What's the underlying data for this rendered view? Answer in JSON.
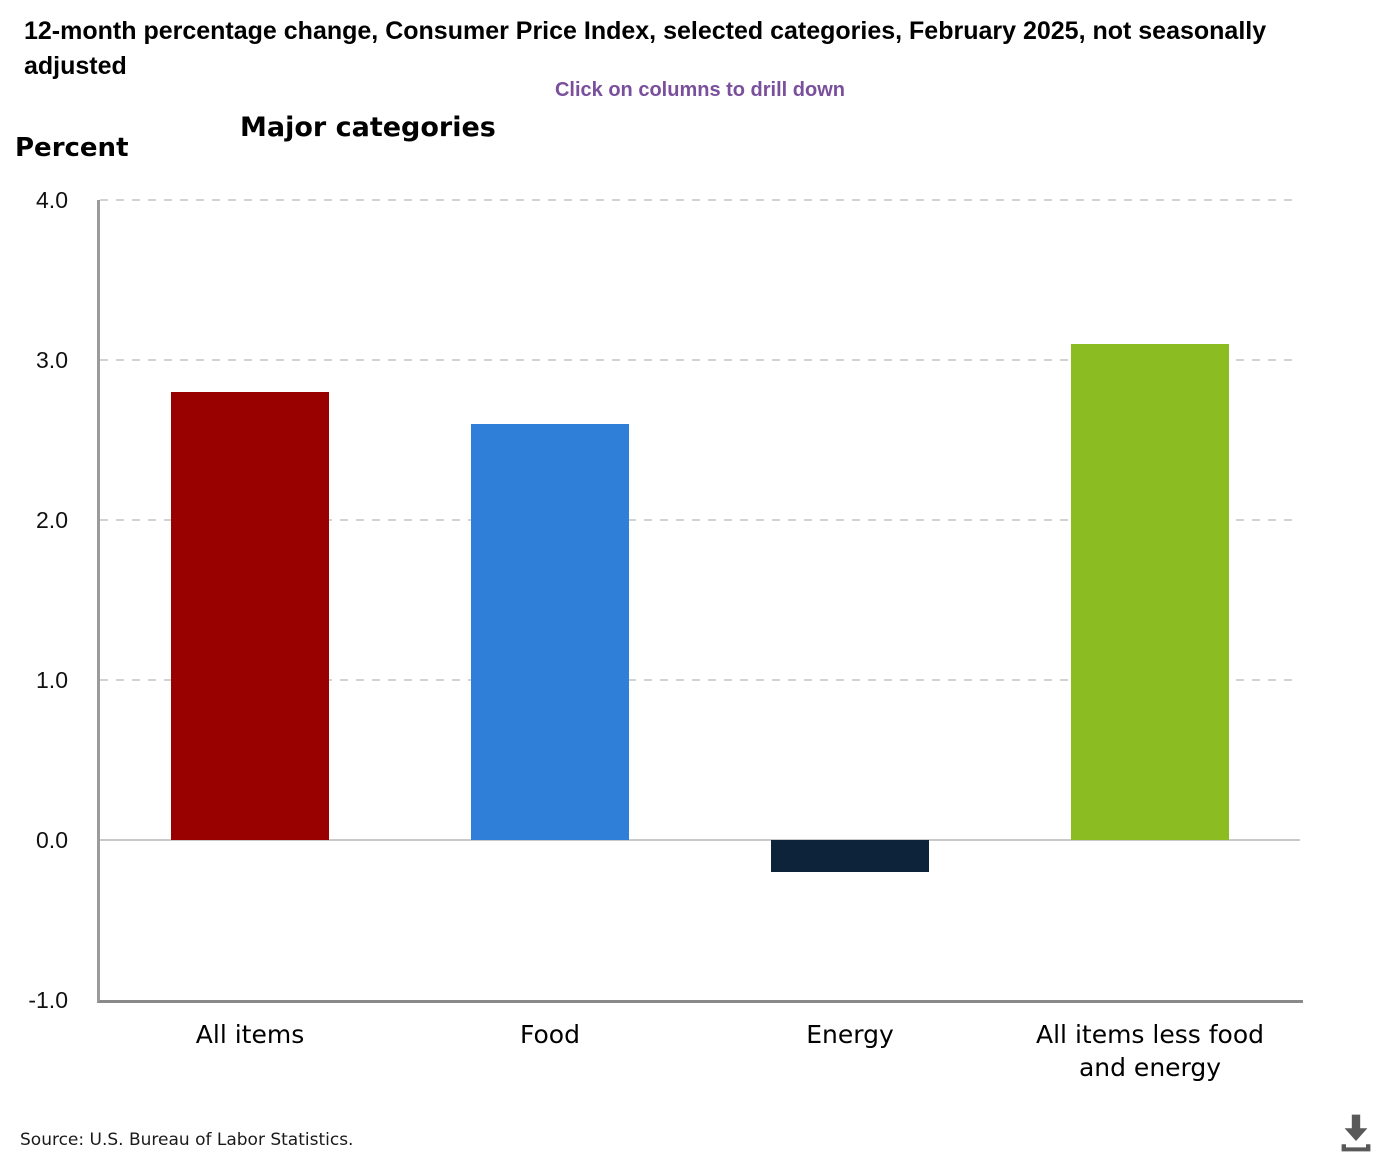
{
  "header": {
    "title": "12-month percentage change, Consumer Price Index, selected categories, February 2025, not seasonally adjusted",
    "hint": "Click on columns to drill down",
    "hint_color": "#7a4f9c"
  },
  "chart_data": {
    "type": "bar",
    "title": "Major categories",
    "ylabel": "Percent",
    "xlabel": "",
    "categories": [
      "All items",
      "Food",
      "Energy",
      "All items less food and energy"
    ],
    "values": [
      2.8,
      2.6,
      -0.2,
      3.1
    ],
    "bar_colors": [
      "#990000",
      "#2f7ed8",
      "#0d233a",
      "#8bbc21"
    ],
    "ylim": [
      -1.0,
      4.0
    ],
    "ytick_labels": [
      "4.0",
      "3.0",
      "2.0",
      "1.0",
      "0.0",
      "-1.0"
    ],
    "grid": "horizontal-dashed",
    "legend": "none"
  },
  "footer": {
    "source": "Source: U.S. Bureau of Labor Statistics.",
    "download_icon": "download-icon"
  }
}
